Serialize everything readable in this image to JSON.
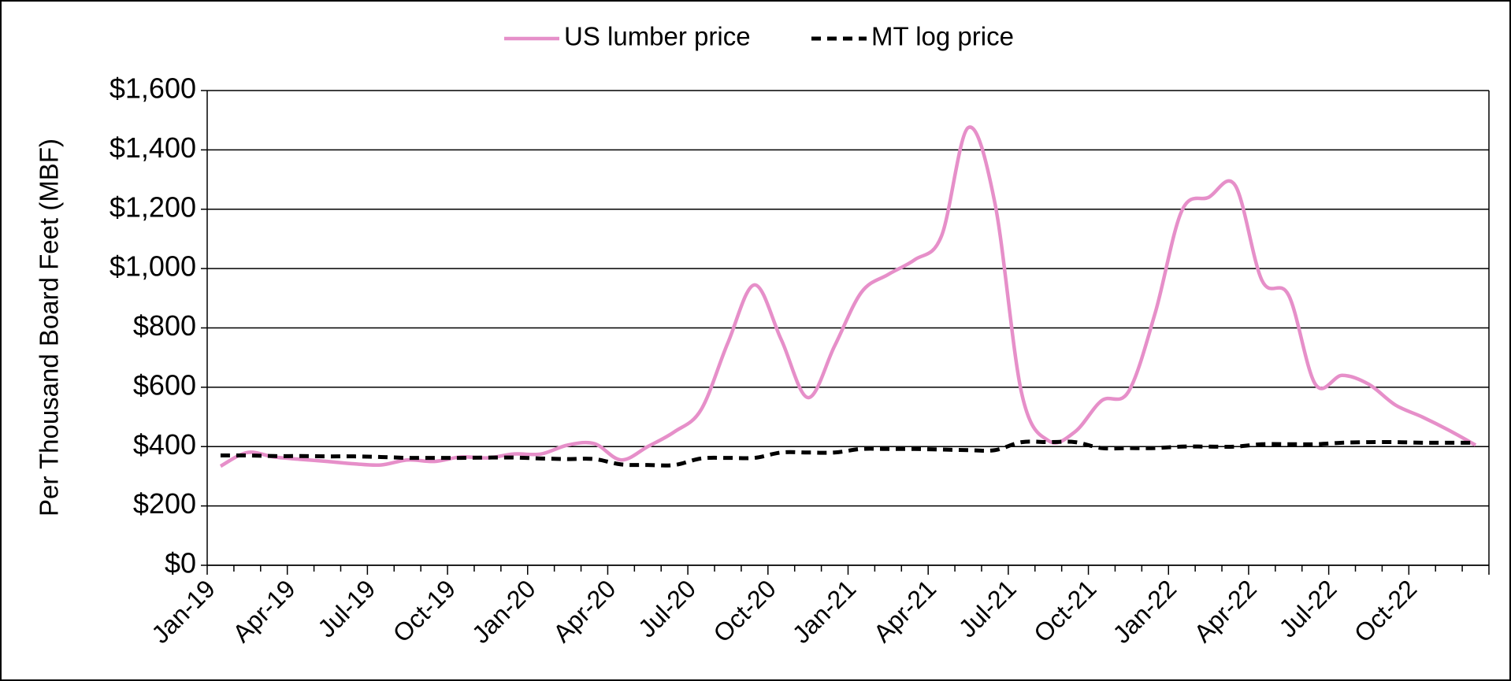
{
  "chart_data": {
    "type": "line",
    "y_label": "Per Thousand Board Feet (MBF)",
    "categories": [
      "Jan-19",
      null,
      null,
      "Apr-19",
      null,
      null,
      "Jul-19",
      null,
      null,
      "Oct-19",
      null,
      null,
      "Jan-20",
      null,
      null,
      "Apr-20",
      null,
      null,
      "Jul-20",
      null,
      null,
      "Oct-20",
      null,
      null,
      "Jan-21",
      null,
      null,
      "Apr-21",
      null,
      null,
      "Jul-21",
      null,
      null,
      "Oct-21",
      null,
      null,
      "Jan-22",
      null,
      null,
      "Apr-22",
      null,
      null,
      "Jul-22",
      null,
      null,
      "Oct-22",
      null,
      null
    ],
    "series": [
      {
        "name": "US lumber price",
        "color": "#e68fc9",
        "style": "solid",
        "values": [
          334,
          380,
          365,
          357,
          350,
          342,
          338,
          355,
          350,
          365,
          362,
          375,
          375,
          405,
          410,
          355,
          400,
          450,
          525,
          750,
          945,
          760,
          565,
          740,
          920,
          980,
          1030,
          1110,
          1475,
          1220,
          580,
          420,
          450,
          555,
          585,
          850,
          1195,
          1240,
          1280,
          960,
          910,
          610,
          640,
          610,
          540,
          500,
          455,
          405
        ]
      },
      {
        "name": "MT log price",
        "color": "#000000",
        "style": "dashed",
        "values": [
          370,
          370,
          368,
          368,
          367,
          367,
          365,
          362,
          362,
          362,
          363,
          363,
          360,
          358,
          358,
          340,
          338,
          338,
          360,
          362,
          362,
          380,
          380,
          380,
          392,
          392,
          392,
          390,
          388,
          388,
          415,
          415,
          415,
          395,
          395,
          395,
          400,
          400,
          400,
          408,
          408,
          408,
          413,
          415,
          415,
          413,
          413,
          413
        ]
      }
    ],
    "ylim": [
      0,
      1600
    ],
    "yticks": [
      {
        "value": 0,
        "label": "$0"
      },
      {
        "value": 200,
        "label": "$200"
      },
      {
        "value": 400,
        "label": "$400"
      },
      {
        "value": 600,
        "label": "$600"
      },
      {
        "value": 800,
        "label": "$800"
      },
      {
        "value": 1000,
        "label": "$1,000"
      },
      {
        "value": 1200,
        "label": "$1,200"
      },
      {
        "value": 1400,
        "label": "$1,400"
      },
      {
        "value": 1600,
        "label": "$1,600"
      }
    ],
    "grid": true,
    "legend": "top"
  }
}
